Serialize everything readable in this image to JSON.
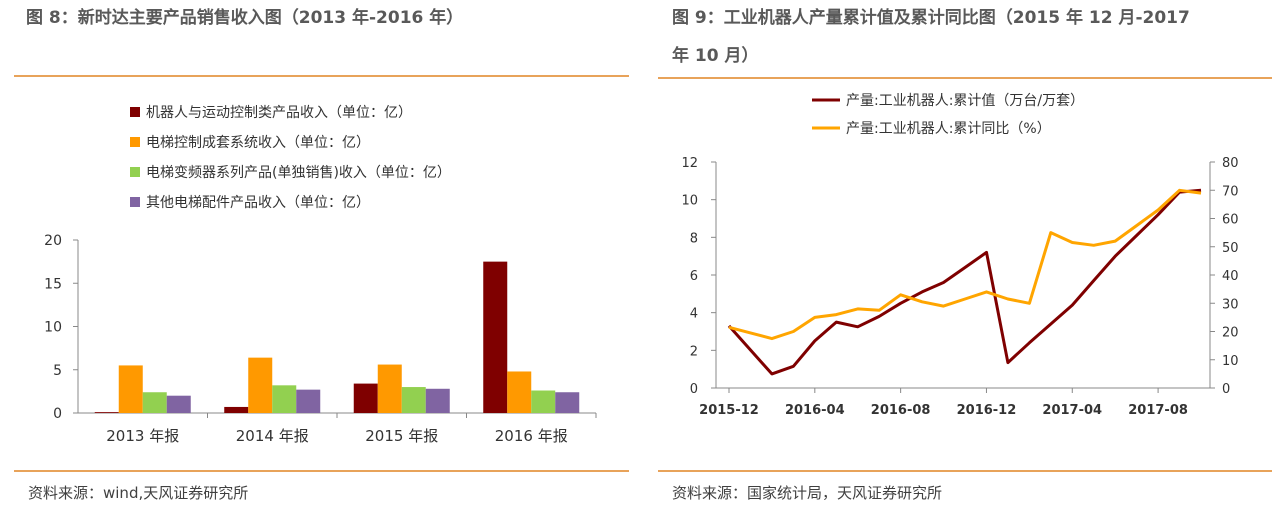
{
  "left": {
    "title": "图 8：新时达主要产品销售收入图（2013 年-2016 年）",
    "source": "资料来源：wind,天风证券研究所"
  },
  "right": {
    "title_line1": "图 9：工业机器人产量累计值及累计同比图（2015 年 12 月-2017",
    "title_line2": "年 10 月）",
    "source": "资料来源：国家统计局，天风证券研究所"
  },
  "chart_data": [
    {
      "type": "bar",
      "categories": [
        "2013 年报",
        "2014 年报",
        "2015 年报",
        "2016 年报"
      ],
      "series": [
        {
          "name": "机器人与运动控制类产品收入（单位：亿）",
          "color": "#7F0000",
          "values": [
            0.1,
            0.7,
            3.4,
            17.5
          ]
        },
        {
          "name": "电梯控制成套系统收入（单位：亿）",
          "color": "#FF9900",
          "values": [
            5.5,
            6.4,
            5.6,
            4.8
          ]
        },
        {
          "name": "电梯变频器系列产品(单独销售)收入（单位：亿）",
          "color": "#92D050",
          "values": [
            2.4,
            3.2,
            3.0,
            2.6
          ]
        },
        {
          "name": "其他电梯配件产品收入（单位：亿）",
          "color": "#8064A2",
          "values": [
            2.0,
            2.7,
            2.8,
            2.4
          ]
        }
      ],
      "ylim": [
        0,
        20
      ],
      "yticks": [
        0,
        5,
        10,
        15,
        20
      ],
      "legend_position": "top-left",
      "grid": false
    },
    {
      "type": "line",
      "x_labels": [
        "2015-12",
        "2016-04",
        "2016-08",
        "2016-12",
        "2017-04",
        "2017-08"
      ],
      "x_label_months": [
        0,
        4,
        8,
        12,
        16,
        20
      ],
      "series": [
        {
          "name": "产量:工业机器人:累计值（万台/万套）",
          "axis": "left",
          "color": "#7F0000",
          "months": [
            0,
            2,
            3,
            4,
            5,
            6,
            7,
            8,
            9,
            10,
            11,
            12,
            13,
            14,
            15,
            16,
            17,
            18,
            19,
            20,
            21,
            22
          ],
          "values": [
            3.3,
            0.75,
            1.15,
            2.5,
            3.5,
            3.25,
            3.8,
            4.5,
            5.1,
            5.6,
            6.4,
            7.2,
            1.35,
            2.4,
            3.4,
            4.4,
            5.7,
            7.0,
            8.1,
            9.2,
            10.4,
            10.5
          ]
        },
        {
          "name": "产量:工业机器人:累计同比（%）",
          "axis": "right",
          "color": "#FFA500",
          "months": [
            0,
            1,
            2,
            3,
            4,
            5,
            6,
            7,
            8,
            9,
            10,
            11,
            12,
            13,
            14,
            15,
            16,
            17,
            18,
            19,
            20,
            21,
            22
          ],
          "values": [
            21.5,
            19.5,
            17.5,
            20,
            25,
            26,
            28,
            27.5,
            33,
            30.5,
            29,
            31.5,
            34,
            31.5,
            30,
            55,
            51.5,
            50.5,
            52,
            57.5,
            63,
            70,
            69
          ]
        }
      ],
      "ylim_left": [
        0,
        12
      ],
      "yticks_left": [
        0,
        2,
        4,
        6,
        8,
        10,
        12
      ],
      "ylim_right": [
        0,
        80
      ],
      "yticks_right": [
        0,
        10,
        20,
        30,
        40,
        50,
        60,
        70,
        80
      ],
      "legend_position": "top",
      "grid": false
    }
  ]
}
